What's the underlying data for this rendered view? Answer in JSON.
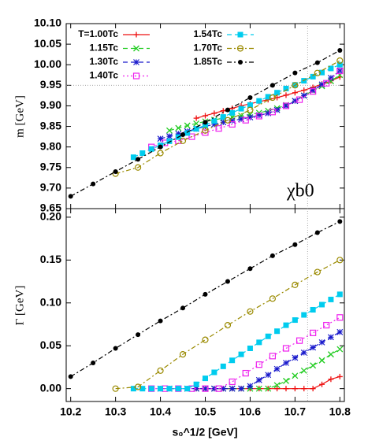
{
  "chart_data": [
    {
      "type": "line",
      "ylabel": "m [GeV]",
      "annotation": "χb0",
      "legend": "top-left",
      "xlim": [
        10.19,
        10.81
      ],
      "ylim": [
        9.65,
        10.1
      ],
      "yticks": [
        9.65,
        {
          "value": 9.7,
          "label": "9.70"
        },
        9.75,
        {
          "value": 9.8,
          "label": "9.80"
        },
        9.85,
        {
          "value": 9.9,
          "label": "9.90"
        },
        9.95,
        {
          "value": 10,
          "label": "10.00"
        },
        10.05,
        {
          "value": 10.1,
          "label": "10.10"
        }
      ],
      "hline": 9.95,
      "vline": 10.728,
      "series": [
        {
          "name": "T=1.00Tc",
          "color": "#ee1111",
          "marker": "plus",
          "line": "solid",
          "x": [
            10.48,
            10.5,
            10.52,
            10.54,
            10.56,
            10.58,
            10.6,
            10.62,
            10.64,
            10.66,
            10.68,
            10.7,
            10.72,
            10.74,
            10.76,
            10.78,
            10.8
          ],
          "values": [
            9.87,
            9.876,
            9.882,
            9.888,
            9.894,
            9.9,
            9.905,
            9.91,
            9.915,
            9.92,
            9.926,
            9.932,
            9.938,
            9.945,
            9.953,
            9.961,
            9.97
          ]
        },
        {
          "name": "1.15Tc",
          "color": "#22cc22",
          "marker": "cross",
          "line": "dashed",
          "x": [
            10.42,
            10.44,
            10.46,
            10.48,
            10.5,
            10.52,
            10.54,
            10.56,
            10.58,
            10.6,
            10.62,
            10.64,
            10.66,
            10.68,
            10.7,
            10.72,
            10.74,
            10.76,
            10.78,
            10.8
          ],
          "values": [
            9.84,
            9.846,
            9.852,
            9.857,
            9.862,
            9.866,
            9.87,
            9.873,
            9.876,
            9.879,
            9.883,
            9.888,
            9.894,
            9.902,
            9.912,
            9.925,
            9.937,
            9.948,
            9.96,
            9.975
          ]
        },
        {
          "name": "1.30Tc",
          "color": "#1a1acc",
          "marker": "star",
          "line": "dashed",
          "x": [
            10.4,
            10.42,
            10.44,
            10.46,
            10.48,
            10.5,
            10.52,
            10.54,
            10.56,
            10.58,
            10.6,
            10.62,
            10.64,
            10.66,
            10.68,
            10.7,
            10.72,
            10.74,
            10.76,
            10.78,
            10.8
          ],
          "values": [
            9.82,
            9.826,
            9.832,
            9.838,
            9.844,
            9.85,
            9.855,
            9.86,
            9.864,
            9.868,
            9.872,
            9.877,
            9.882,
            9.89,
            9.9,
            9.912,
            9.925,
            9.938,
            9.952,
            9.968,
            9.985
          ]
        },
        {
          "name": "1.40Tc",
          "color": "#ee22ee",
          "marker": "square-open",
          "line": "dotted",
          "x": [
            10.38,
            10.41,
            10.44,
            10.47,
            10.5,
            10.53,
            10.56,
            10.59,
            10.62,
            10.65,
            10.68,
            10.71,
            10.74,
            10.77,
            10.8
          ],
          "values": [
            9.8,
            9.81,
            9.815,
            9.825,
            9.835,
            9.845,
            9.855,
            9.865,
            9.875,
            9.885,
            9.9,
            9.915,
            9.935,
            9.955,
            9.985
          ]
        },
        {
          "name": "1.54Tc",
          "color": "#00ccee",
          "marker": "square",
          "line": "dashed",
          "x": [
            10.34,
            10.36,
            10.38,
            10.4,
            10.42,
            10.44,
            10.46,
            10.48,
            10.5,
            10.52,
            10.54,
            10.56,
            10.58,
            10.6,
            10.62,
            10.64,
            10.66,
            10.68,
            10.7,
            10.72,
            10.74,
            10.76,
            10.78,
            10.8
          ],
          "values": [
            9.775,
            9.785,
            9.795,
            9.804,
            9.814,
            9.824,
            9.834,
            9.844,
            9.853,
            9.863,
            9.873,
            9.883,
            9.893,
            9.902,
            9.912,
            9.922,
            9.932,
            9.942,
            9.951,
            9.961,
            9.971,
            9.981,
            9.991,
            10.0
          ]
        },
        {
          "name": "1.70Tc",
          "color": "#9a8a00",
          "marker": "circle-open",
          "line": "dashdot",
          "x": [
            10.3,
            10.35,
            10.4,
            10.45,
            10.5,
            10.55,
            10.6,
            10.65,
            10.7,
            10.75,
            10.8
          ],
          "values": [
            9.735,
            9.75,
            9.785,
            9.815,
            9.84,
            9.865,
            9.89,
            9.92,
            9.95,
            9.98,
            10.01
          ]
        },
        {
          "name": "1.85Tc",
          "color": "#000000",
          "marker": "circle",
          "line": "dashdot",
          "x": [
            10.2,
            10.25,
            10.3,
            10.35,
            10.4,
            10.45,
            10.5,
            10.55,
            10.6,
            10.65,
            10.7,
            10.75,
            10.8
          ],
          "values": [
            9.68,
            9.71,
            9.74,
            9.77,
            9.8,
            9.83,
            9.86,
            9.89,
            9.92,
            9.95,
            9.98,
            10.005,
            10.035
          ]
        }
      ]
    },
    {
      "type": "line",
      "xlabel": "s₀^1/2 [GeV]",
      "ylabel": "Γ [GeV]",
      "xlim": [
        10.19,
        10.81
      ],
      "ylim": [
        -0.015,
        0.21
      ],
      "xticks": [
        10.2,
        10.3,
        10.4,
        10.5,
        10.6,
        10.7,
        10.8
      ],
      "yticks": [
        {
          "value": 0,
          "label": "0.00"
        },
        0.05,
        {
          "value": 0.1,
          "label": "0.10"
        },
        0.15,
        {
          "value": 0.2,
          "label": "0.20"
        }
      ],
      "vline": 10.728,
      "series": [
        {
          "color": "#ee1111",
          "marker": "plus",
          "line": "solid",
          "x": [
            10.48,
            10.5,
            10.52,
            10.54,
            10.56,
            10.58,
            10.6,
            10.62,
            10.64,
            10.66,
            10.68,
            10.7,
            10.72,
            10.74,
            10.76,
            10.78,
            10.8
          ],
          "values": [
            0,
            0,
            0,
            0,
            0,
            0,
            0,
            0,
            0,
            0,
            0,
            0,
            0,
            0,
            0.005,
            0.011,
            0.014
          ]
        },
        {
          "color": "#22cc22",
          "marker": "cross",
          "line": "dashed",
          "x": [
            10.42,
            10.44,
            10.46,
            10.48,
            10.5,
            10.52,
            10.54,
            10.56,
            10.58,
            10.6,
            10.62,
            10.64,
            10.66,
            10.68,
            10.7,
            10.72,
            10.74,
            10.76,
            10.78,
            10.8
          ],
          "values": [
            0,
            0,
            0,
            0,
            0,
            0,
            0,
            0,
            0,
            0,
            0,
            0,
            0.004,
            0.009,
            0.015,
            0.021,
            0.027,
            0.033,
            0.04,
            0.046
          ]
        },
        {
          "color": "#1a1acc",
          "marker": "star",
          "line": "dashed",
          "x": [
            10.4,
            10.42,
            10.44,
            10.46,
            10.48,
            10.5,
            10.52,
            10.54,
            10.56,
            10.58,
            10.6,
            10.62,
            10.64,
            10.66,
            10.68,
            10.7,
            10.72,
            10.74,
            10.76,
            10.78,
            10.8
          ],
          "values": [
            0,
            0,
            0,
            0,
            0,
            0,
            0,
            0,
            0,
            0,
            0.003,
            0.01,
            0.016,
            0.023,
            0.03,
            0.036,
            0.042,
            0.048,
            0.054,
            0.06,
            0.066
          ]
        },
        {
          "color": "#ee22ee",
          "marker": "square-open",
          "line": "dotted",
          "x": [
            10.38,
            10.41,
            10.44,
            10.47,
            10.5,
            10.53,
            10.56,
            10.59,
            10.62,
            10.65,
            10.68,
            10.71,
            10.74,
            10.77,
            10.8
          ],
          "values": [
            0,
            0,
            0,
            0,
            0,
            0,
            0.008,
            0.018,
            0.028,
            0.038,
            0.047,
            0.056,
            0.065,
            0.074,
            0.083
          ]
        },
        {
          "color": "#00ccee",
          "marker": "square",
          "line": "dashed",
          "x": [
            10.34,
            10.36,
            10.38,
            10.4,
            10.42,
            10.44,
            10.46,
            10.48,
            10.5,
            10.52,
            10.54,
            10.56,
            10.58,
            10.6,
            10.62,
            10.64,
            10.66,
            10.68,
            10.7,
            10.72,
            10.74,
            10.76,
            10.78,
            10.8
          ],
          "values": [
            0,
            0,
            0,
            0,
            0,
            0,
            0,
            0.005,
            0.012,
            0.019,
            0.026,
            0.033,
            0.04,
            0.047,
            0.054,
            0.061,
            0.067,
            0.074,
            0.08,
            0.086,
            0.092,
            0.098,
            0.104,
            0.11
          ]
        },
        {
          "color": "#9a8a00",
          "marker": "circle-open",
          "line": "dashdot",
          "x": [
            10.3,
            10.35,
            10.4,
            10.45,
            10.5,
            10.55,
            10.6,
            10.65,
            10.7,
            10.75,
            10.8
          ],
          "values": [
            0,
            0.002,
            0.021,
            0.04,
            0.057,
            0.074,
            0.09,
            0.105,
            0.121,
            0.136,
            0.15
          ]
        },
        {
          "color": "#000000",
          "marker": "circle",
          "line": "dashdot",
          "x": [
            10.2,
            10.25,
            10.3,
            10.35,
            10.4,
            10.45,
            10.5,
            10.55,
            10.6,
            10.65,
            10.7,
            10.75,
            10.8
          ],
          "values": [
            0.014,
            0.03,
            0.047,
            0.063,
            0.079,
            0.094,
            0.11,
            0.125,
            0.14,
            0.155,
            0.168,
            0.182,
            0.195
          ]
        }
      ]
    }
  ]
}
